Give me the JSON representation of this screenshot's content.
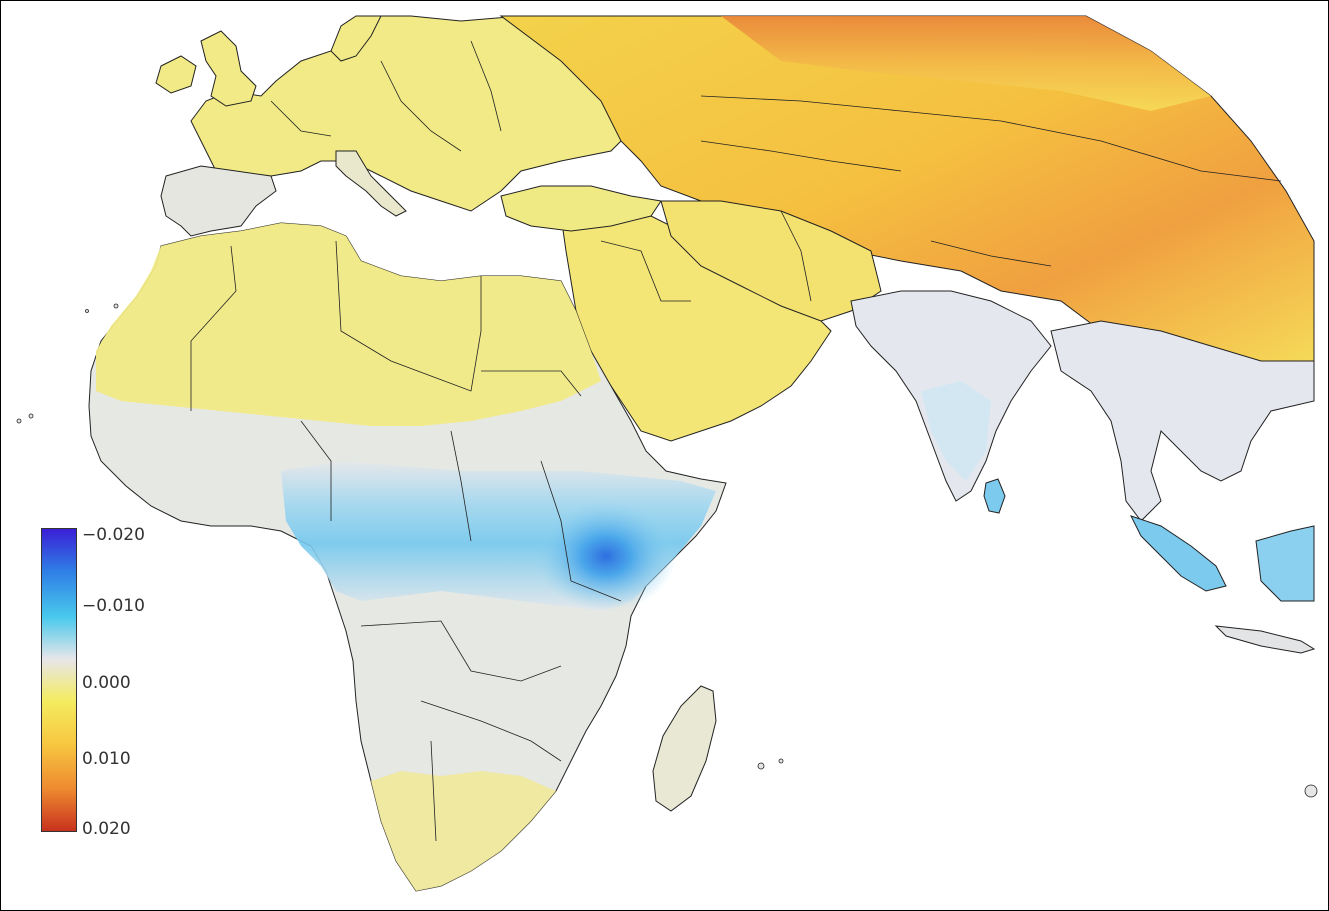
{
  "legend": {
    "ticks": [
      "−0.020",
      "−0.010",
      "0.000",
      "0.010",
      "0.020"
    ],
    "tick_values": [
      -0.02,
      -0.01,
      0.0,
      0.01,
      0.02
    ],
    "range": [
      -0.02,
      0.02
    ],
    "colors": [
      "#3a1fd6",
      "#2f7fe6",
      "#48c8ec",
      "#e6e6ea",
      "#f4ec60",
      "#f7c840",
      "#ee8a30",
      "#c8321e"
    ]
  },
  "map": {
    "region": "Europe, Africa, Middle East, Central and South Asia",
    "palette": {
      "water": "#ffffff",
      "border": "#222222",
      "neutral": "#e4e6ea",
      "light_yellow": "#f0ec8a",
      "yellow": "#f5e66a",
      "orange": "#f0a040",
      "light_blue": "#cfe6f2",
      "blue": "#6cc6ec",
      "deep_blue": "#2e6fe0"
    }
  }
}
